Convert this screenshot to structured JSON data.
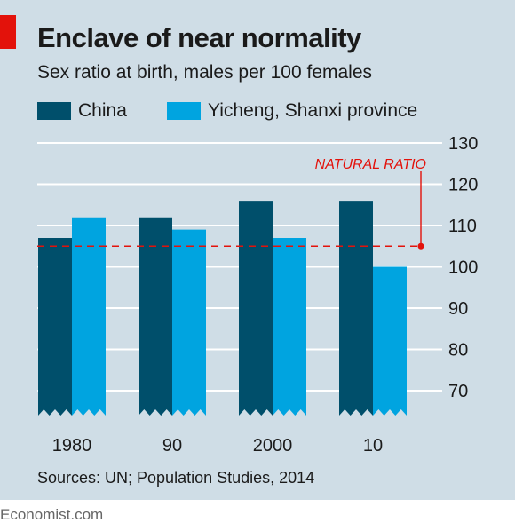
{
  "header": {
    "title": "Enclave of near normality",
    "subtitle": "Sex ratio at birth, males per 100 females"
  },
  "colors": {
    "china": "#004f6b",
    "yicheng": "#00a4e0",
    "reference": "#e3120b",
    "accent": "#e3120b",
    "background": "#cfdde6"
  },
  "chart_data": {
    "type": "bar",
    "categories": [
      "1980",
      "90",
      "2000",
      "10"
    ],
    "series": [
      {
        "name": "China",
        "values": [
          107,
          112,
          116,
          116
        ]
      },
      {
        "name": "Yicheng, Shanxi province",
        "values": [
          112,
          109,
          107,
          100
        ]
      }
    ],
    "ylim": [
      65,
      130
    ],
    "yticks": [
      70,
      80,
      90,
      100,
      110,
      120,
      130
    ],
    "axis_break": true,
    "reference_line": {
      "label": "NATURAL RATIO",
      "value": 105
    },
    "grid": true,
    "y_axis_side": "right",
    "legend_placement": "top-left"
  },
  "footer": {
    "source": "Sources: UN; Population Studies, 2014",
    "brand": "Economist.com"
  }
}
